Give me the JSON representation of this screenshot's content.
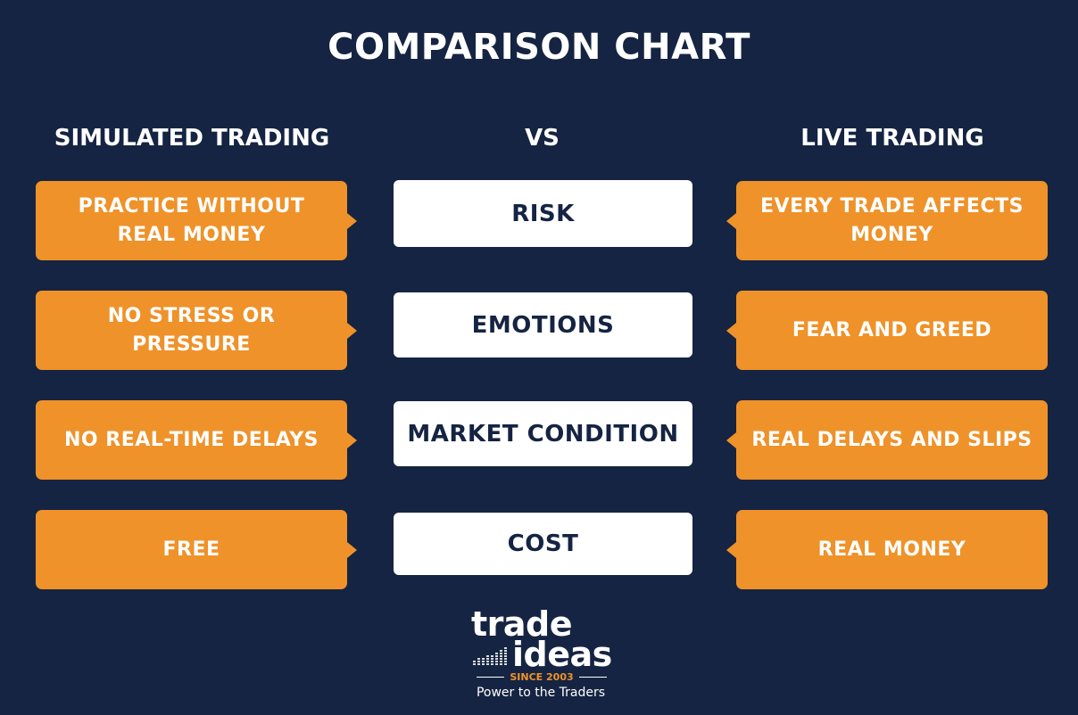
{
  "title": "COMPARISON CHART",
  "headers": {
    "left": "SIMULATED TRADING",
    "middle": "VS",
    "right": "LIVE TRADING"
  },
  "rows": [
    {
      "left": "PRACTICE WITHOUT REAL MONEY",
      "center": "RISK",
      "right": "EVERY TRADE AFFECTS MONEY"
    },
    {
      "left": "NO STRESS OR PRESSURE",
      "center": "EMOTIONS",
      "right": "FEAR AND GREED"
    },
    {
      "left": "NO REAL-TIME DELAYS",
      "center": "MARKET CONDITION",
      "right": "REAL DELAYS AND SLIPS"
    },
    {
      "left": "FREE",
      "center": "COST",
      "right": "REAL MONEY"
    }
  ],
  "logo": {
    "word1": "trade",
    "word2": "ideas",
    "since": "SINCE 2003",
    "tagline": "Power to the Traders"
  },
  "colors": {
    "background": "#152442",
    "accent": "#ef9229",
    "center_box": "#ffffff"
  }
}
